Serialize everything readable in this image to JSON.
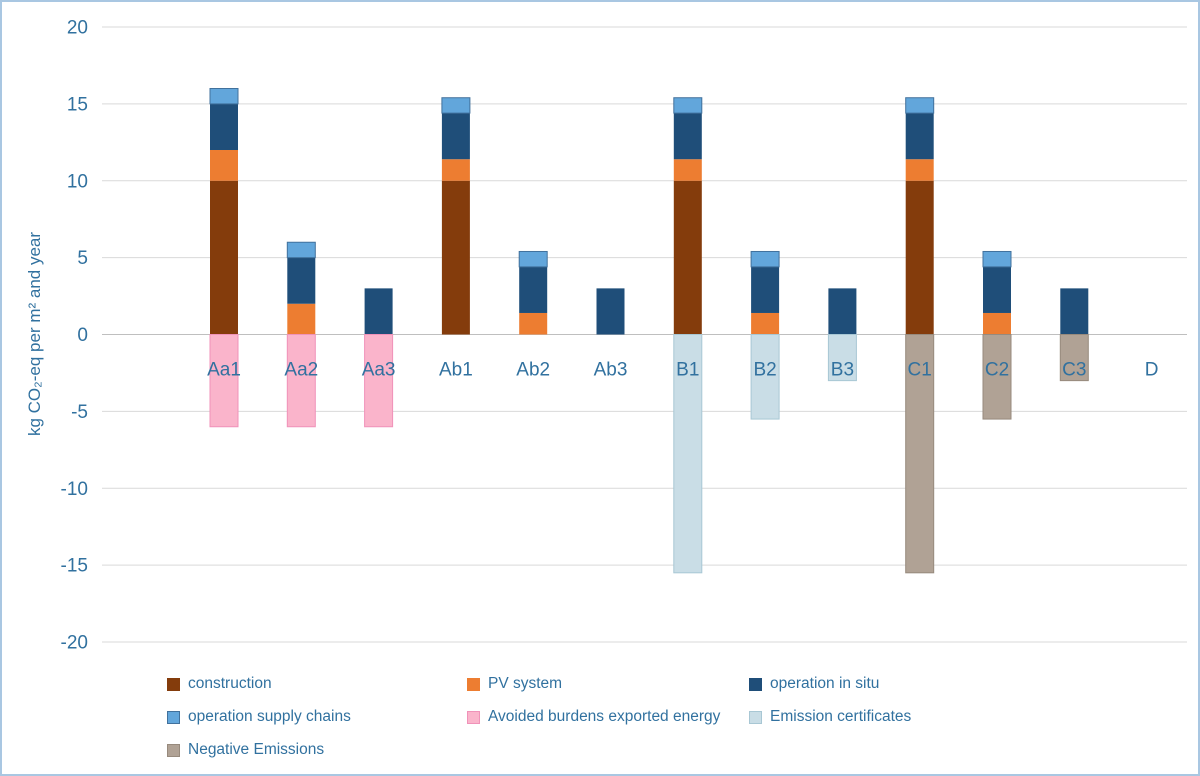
{
  "colors": {
    "text": "#31719f",
    "gridline": "#d9d9d9",
    "zero_line": "#bfbfbf",
    "background": "#ffffff",
    "figure_border": "#a9c7e2"
  },
  "chart_data": {
    "type": "bar",
    "stacked": true,
    "title": "",
    "ylabel": "kg CO₂-eq per m² and year",
    "xlabel": "",
    "ylim": [
      -20,
      20
    ],
    "yticks": [
      20,
      15,
      10,
      5,
      0,
      -5,
      -10,
      -15,
      -20
    ],
    "grid": true,
    "legend_position": "bottom",
    "categories": [
      "Aa1",
      "Aa2",
      "Aa3",
      "Ab1",
      "Ab2",
      "Ab3",
      "B1",
      "B2",
      "B3",
      "C1",
      "C2",
      "C3",
      "D"
    ],
    "series": [
      {
        "name": "construction",
        "color": "#843c0c",
        "stroke": "",
        "values": [
          10,
          0,
          0,
          10,
          0,
          0,
          10,
          0,
          0,
          10,
          0,
          0,
          0
        ]
      },
      {
        "name": "PV system",
        "color": "#ed7d31",
        "stroke": "",
        "values": [
          2,
          2,
          0,
          1.4,
          1.4,
          0,
          1.4,
          1.4,
          0,
          1.4,
          1.4,
          0,
          0
        ]
      },
      {
        "name": "operation in situ",
        "color": "#1f4e79",
        "stroke": "",
        "values": [
          3,
          3,
          3,
          3,
          3,
          3,
          3,
          3,
          3,
          3,
          3,
          3,
          0
        ]
      },
      {
        "name": "operation supply chains",
        "color": "#62a6db",
        "stroke": "#41719c",
        "values": [
          1,
          1,
          0,
          1,
          1,
          0,
          1,
          1,
          0,
          1,
          1,
          0,
          0
        ]
      },
      {
        "name": "Avoided burdens exported energy",
        "color": "#fab4cb",
        "stroke": "#f092b9",
        "values": [
          -6,
          -6,
          -6,
          0,
          0,
          0,
          0,
          0,
          0,
          0,
          0,
          0,
          0
        ]
      },
      {
        "name": "Emission certificates",
        "color": "#c9dde6",
        "stroke": "#a8c7d4",
        "values": [
          0,
          0,
          0,
          0,
          0,
          0,
          -15.5,
          -5.5,
          -3,
          0,
          0,
          0,
          0
        ]
      },
      {
        "name": "Negative Emissions",
        "color": "#b0a295",
        "stroke": "#978a7d",
        "values": [
          0,
          0,
          0,
          0,
          0,
          0,
          0,
          0,
          0,
          -15.5,
          -5.5,
          -3,
          0
        ]
      }
    ]
  }
}
